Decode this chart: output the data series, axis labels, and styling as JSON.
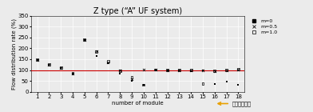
{
  "title": "Z type (“A” UF system)",
  "xlabel": "number of module",
  "ylabel": "Flow distribution rate (%)",
  "xlim": [
    0.5,
    18.5
  ],
  "ylim": [
    0,
    350
  ],
  "yticks": [
    0,
    50,
    100,
    150,
    200,
    250,
    300,
    350
  ],
  "xticks": [
    1,
    2,
    3,
    4,
    5,
    6,
    7,
    8,
    9,
    10,
    11,
    12,
    13,
    14,
    15,
    16,
    17,
    18
  ],
  "hline_y": 100,
  "hline_color": "#cc0000",
  "arrow_text": "원수유입방향",
  "legend_labels": [
    "m=0",
    "m=0.5",
    "m=1.0"
  ],
  "series_m0": [
    148,
    125,
    110,
    82,
    238,
    165,
    130,
    82,
    52,
    32,
    100,
    98,
    97,
    96,
    100,
    35,
    47,
    32
  ],
  "series_m05": [
    148,
    125,
    110,
    85,
    238,
    185,
    135,
    97,
    57,
    102,
    103,
    100,
    100,
    100,
    100,
    95,
    100,
    103
  ],
  "series_m10": [
    148,
    125,
    112,
    85,
    240,
    185,
    140,
    97,
    68,
    32,
    102,
    100,
    100,
    100,
    38,
    97,
    100,
    103
  ],
  "background_color": "#ebebeb",
  "grid_color": "#ffffff",
  "title_fontsize": 7,
  "label_fontsize": 5,
  "tick_fontsize": 5,
  "legend_fontsize": 4.5
}
